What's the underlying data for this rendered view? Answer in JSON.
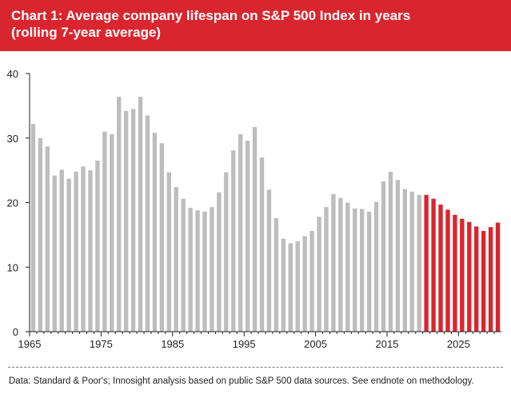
{
  "header": {
    "title_line1": "Chart 1: Average company lifespan on S&P 500 Index in years",
    "title_line2": "(rolling 7-year average)"
  },
  "footer": {
    "source": "Data: Standard & Poor's; Innosight analysis based on public S&P 500 data sources. See endnote on methodology."
  },
  "colors": {
    "brand": "#d9262e",
    "historical": "#bdbdbd",
    "forecast": "#d9262e",
    "axis": "#222222"
  },
  "chart_data": {
    "type": "bar",
    "title": "Chart 1: Average company lifespan on S&P 500 Index in years (rolling 7-year average)",
    "xlabel": "",
    "ylabel": "",
    "ylim": [
      0,
      40
    ],
    "yticks": [
      0,
      10,
      20,
      30,
      40
    ],
    "xticks": [
      1965,
      1975,
      1985,
      1995,
      2005,
      2015,
      2025
    ],
    "grid": false,
    "legend": "none",
    "categories": [
      1965,
      1966,
      1967,
      1968,
      1969,
      1970,
      1971,
      1972,
      1973,
      1974,
      1975,
      1976,
      1977,
      1978,
      1979,
      1980,
      1981,
      1982,
      1983,
      1984,
      1985,
      1986,
      1987,
      1988,
      1989,
      1990,
      1991,
      1992,
      1993,
      1994,
      1995,
      1996,
      1997,
      1998,
      1999,
      2000,
      2001,
      2002,
      2003,
      2004,
      2005,
      2006,
      2007,
      2008,
      2009,
      2010,
      2011,
      2012,
      2013,
      2014,
      2015,
      2016,
      2017,
      2018,
      2019,
      2020,
      2021,
      2022,
      2023,
      2024,
      2025,
      2026,
      2027,
      2028,
      2029,
      2030
    ],
    "values": [
      32.2,
      30.0,
      28.7,
      24.2,
      25.1,
      23.7,
      24.8,
      25.6,
      25.0,
      26.5,
      31.0,
      30.6,
      36.4,
      34.2,
      34.5,
      36.4,
      33.5,
      30.8,
      29.2,
      24.7,
      22.4,
      20.6,
      19.2,
      18.8,
      18.6,
      19.3,
      21.6,
      24.7,
      28.1,
      30.6,
      29.6,
      31.7,
      27.0,
      22.0,
      17.6,
      14.4,
      13.7,
      14.0,
      14.8,
      15.6,
      17.8,
      19.3,
      21.3,
      20.7,
      20.0,
      19.1,
      19.0,
      18.6,
      20.1,
      23.3,
      24.8,
      23.5,
      22.1,
      21.7,
      21.2,
      21.2,
      20.6,
      19.7,
      18.9,
      18.1,
      17.5,
      17.0,
      16.3,
      15.6,
      16.2,
      16.9
    ],
    "forecast_start": 2020
  }
}
